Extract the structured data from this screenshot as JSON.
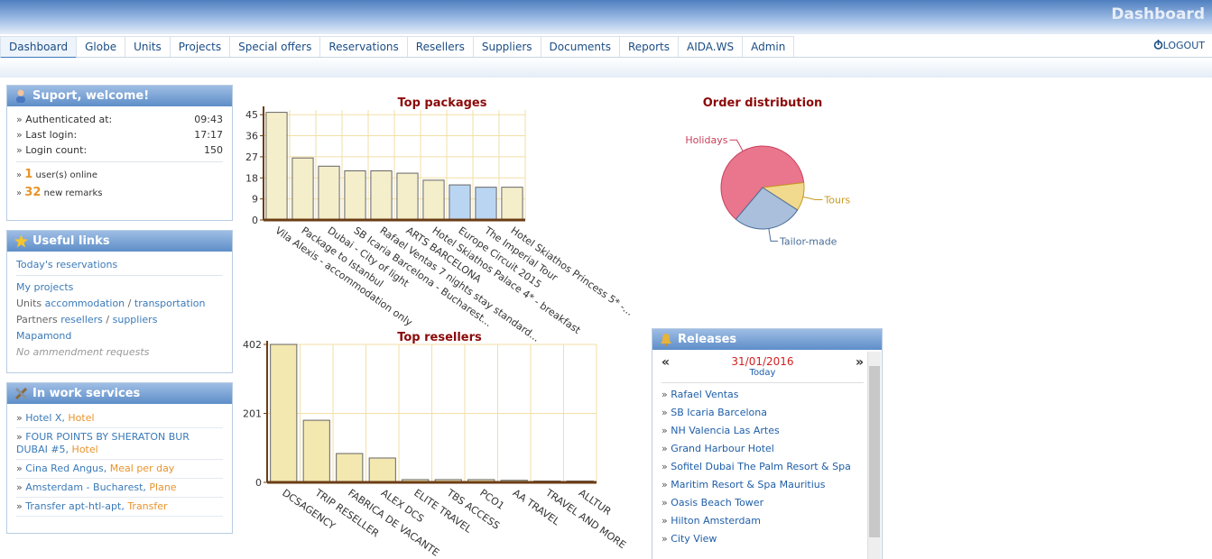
{
  "header": {
    "title": "Dashboard"
  },
  "nav": {
    "items": [
      "Dashboard",
      "Globe",
      "Units",
      "Projects",
      "Special offers",
      "Reservations",
      "Resellers",
      "Suppliers",
      "Documents",
      "Reports",
      "AIDA.WS",
      "Admin"
    ],
    "logout": "LOGOUT"
  },
  "welcome": {
    "title": "Suport, welcome!",
    "rows": [
      [
        "Authenticated at:",
        "09:43"
      ],
      [
        "Last login:",
        "17:17"
      ],
      [
        "Login count:",
        "150"
      ]
    ],
    "online": [
      "1",
      "user(s) online"
    ],
    "remarks": [
      "32",
      "new remarks"
    ]
  },
  "links": {
    "title": "Useful links",
    "items": [
      [
        "Today's reservations"
      ],
      [
        "My projects"
      ],
      [
        "Units",
        "accommodation",
        "/",
        "transportation"
      ],
      [
        "Partners",
        "resellers",
        "/",
        "suppliers"
      ],
      [
        "Mapamond"
      ],
      [
        "No ammendment requests"
      ]
    ]
  },
  "services": {
    "title": "In work services",
    "items": [
      [
        "Hotel X,",
        "Hotel"
      ],
      [
        "FOUR POINTS BY SHERATON BUR DUBAI #5,",
        "Hotel"
      ],
      [
        "Cina Red Angus,",
        "Meal per day"
      ],
      [
        "Amsterdam - Bucharest,",
        "Plane"
      ],
      [
        "Transfer apt-htl-apt,",
        "Transfer"
      ]
    ]
  },
  "releases": {
    "title": "Releases",
    "prev": "«",
    "next": "»",
    "date": "31/01/2016",
    "today": "Today",
    "items": [
      "Rafael Ventas",
      "SB Icaria Barcelona",
      "NH Valencia Las Artes",
      "Grand Harbour Hotel",
      "Sofitel Dubai The Palm Resort & Spa",
      "Maritim Resort & Spa Mauritius",
      "Oasis Beach Tower",
      "Hilton Amsterdam",
      "City View"
    ]
  },
  "chart_data": [
    {
      "type": "bar",
      "title": "Top packages",
      "categories": [
        "Vila Alexis - accommodation only",
        "Package to Istanbul",
        "Dubai - City of light",
        "SB Icaria Barcelona - Bucharest...",
        "Rafael Ventas 7 nights stay standard...",
        "ARTS BARCELONA",
        "Hotel Skiathos Palace 4* - breakfast",
        "Europe Circuit 2015",
        "The Imperial Tour",
        "Hotel Skiathos Princess 5* -..."
      ],
      "values": [
        46,
        26.5,
        23,
        21,
        21,
        20,
        17,
        15,
        14,
        14
      ],
      "colors": [
        "#f5eecb",
        "#f5eecb",
        "#f5eecb",
        "#f5eecb",
        "#f5eecb",
        "#f5eecb",
        "#f5eecb",
        "#b9d5f2",
        "#b9d5f2",
        "#f5eecb"
      ],
      "ylim": [
        0,
        47
      ],
      "yticks": [
        0,
        9,
        18,
        27,
        36,
        45
      ],
      "grid": true
    },
    {
      "type": "bar",
      "title": "Top resellers",
      "categories": [
        "DCSAGENCY",
        "TRIP RESELLER",
        "FABRICA DE VACANTE",
        "ALEX DCS",
        "ELITE TRAVEL",
        "TBS ACCESS",
        "PCO1",
        "AA TRAVEL",
        "TRAVEL AND MORE",
        "ALLTUR"
      ],
      "values": [
        402,
        181,
        84,
        71,
        8,
        8,
        8,
        6,
        4,
        4
      ],
      "colors": [
        "#f3e8b0",
        "#f3e8b0",
        "#f3e8b0",
        "#f3e8b0",
        "#f3e8b0",
        "#f3e8b0",
        "#f3e8b0",
        "#f3e8b0",
        "#f3e8b0",
        "#f3e8b0"
      ],
      "ylim": [
        0,
        402
      ],
      "yticks": [
        0,
        201,
        402
      ],
      "grid": true
    },
    {
      "type": "pie",
      "title": "Order distribution",
      "categories": [
        "Holidays",
        "Tours",
        "Tailor-made"
      ],
      "values": [
        62,
        11,
        27
      ],
      "colors": [
        "#e9768d",
        "#f1d98e",
        "#a9bfdb"
      ],
      "label_colors": [
        "#c8405a",
        "#c89a1e",
        "#4a6e99"
      ]
    }
  ]
}
